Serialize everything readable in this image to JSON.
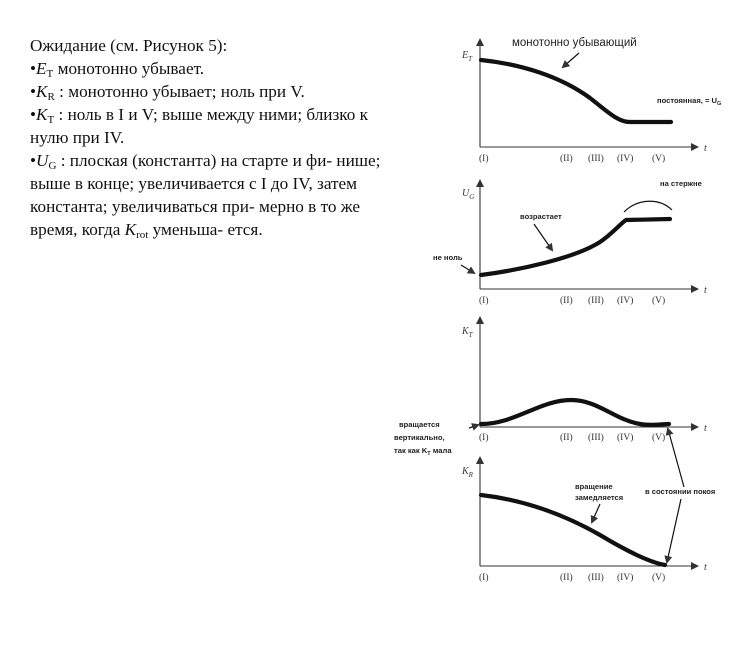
{
  "text": {
    "intro": "Ожидание (см. Рисунок 5):",
    "bullet": "•",
    "line1": {
      "sym": "E",
      "sub": "T",
      "text": " монотонно убывает."
    },
    "line2": {
      "sym": "K",
      "sub": "R",
      "text": " : монотонно убывает; ноль при V."
    },
    "line3": {
      "sym": "K",
      "sub": "T",
      "text": " : ноль в I и V; выше между ними; близко к нулю при IV."
    },
    "line4": {
      "sym": "U",
      "sub": "G",
      "text_a": " : плоская (константа) на старте и фи- нише; выше в конце; увеличивается с I до IV, затем константа; увеличиваться при- мерно в то же время, когда ",
      "krot_sym": "K",
      "krot_sub": "rot",
      "text_b": " уменьша- ется."
    }
  },
  "figure": {
    "stage_labels": [
      "(I)",
      "(II)",
      "(III)",
      "(IV)",
      "(V)"
    ],
    "t_label": "t",
    "panel1": {
      "ylabel": "E",
      "ylabel_sub": "T",
      "title": "монотонно убывающий",
      "note": "постоянная, = U",
      "note_sub": "G"
    },
    "panel2": {
      "ylabel": "U",
      "ylabel_sub": "G",
      "label_increase": "возрастает",
      "label_rod": "на стержне",
      "label_nonzero": "не ноль"
    },
    "panel3": {
      "ylabel": "K",
      "ylabel_sub": "T",
      "note_line1": "вращается",
      "note_line2": "вертикально,",
      "note_line3a": "так как K",
      "note_line3sub": "T",
      "note_line3b": " мала"
    },
    "panel4": {
      "ylabel": "K",
      "ylabel_sub": "R",
      "label_slowing_1": "вращение",
      "label_slowing_2": "замедляется",
      "label_rest": "в состоянии покоя"
    }
  }
}
